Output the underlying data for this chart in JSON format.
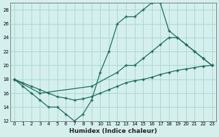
{
  "xlabel": "Humidex (Indice chaleur)",
  "background_color": "#d4efec",
  "grid_color": "#aad8d3",
  "line_color": "#1a6b5a",
  "xlim": [
    -0.5,
    23.5
  ],
  "ylim": [
    12,
    29
  ],
  "yticks": [
    12,
    14,
    16,
    18,
    20,
    22,
    24,
    26,
    28
  ],
  "xticks": [
    0,
    1,
    2,
    3,
    4,
    5,
    6,
    7,
    8,
    9,
    10,
    11,
    12,
    13,
    14,
    15,
    16,
    17,
    18,
    19,
    20,
    21,
    22,
    23
  ],
  "line1_x": [
    0,
    1,
    2,
    3,
    4,
    5,
    6,
    7,
    8,
    9,
    10,
    11,
    12,
    13,
    14,
    15,
    16,
    17,
    18,
    19,
    20,
    21,
    22,
    23
  ],
  "line1_y": [
    18,
    17,
    16,
    15,
    14,
    14,
    13,
    12,
    13,
    15,
    19,
    22,
    26,
    27,
    27,
    28,
    29,
    29,
    25,
    24,
    23,
    22,
    21,
    20
  ],
  "line2_x": [
    0,
    3,
    9,
    12,
    13,
    14,
    15,
    16,
    17,
    18,
    19,
    20,
    21,
    22,
    23
  ],
  "line2_y": [
    18,
    16,
    17,
    19,
    20,
    20,
    21,
    22,
    23,
    24,
    24,
    23,
    22,
    21,
    20
  ],
  "line3_x": [
    0,
    1,
    2,
    3,
    4,
    5,
    6,
    7,
    8,
    9,
    10,
    11,
    12,
    13,
    14,
    15,
    16,
    17,
    18,
    19,
    20,
    21,
    22,
    23
  ],
  "line3_y": [
    18,
    17.5,
    17,
    16.5,
    16,
    15.5,
    15.3,
    15,
    15.2,
    15.5,
    16,
    16.5,
    17,
    17.5,
    17.8,
    18,
    18.3,
    18.7,
    19,
    19.3,
    19.5,
    19.7,
    19.9,
    20
  ]
}
